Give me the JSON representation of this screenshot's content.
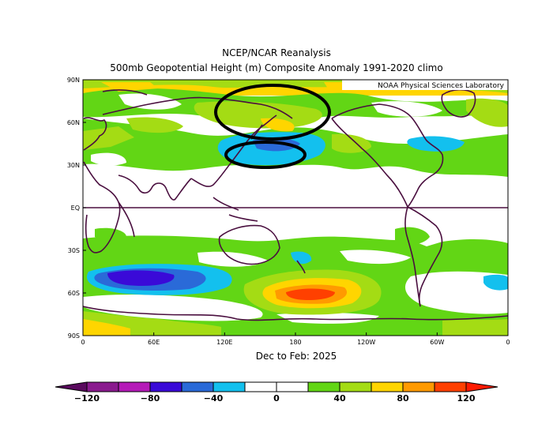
{
  "figure": {
    "title_line1": "NCEP/NCAR Reanalysis",
    "title_line2": "500mb Geopotential Height (m) Composite Anomaly 1991-2020 climo",
    "credit": "NOAA Physical Sciences Laboratory",
    "period": "Dec to Feb: 2025"
  },
  "axes": {
    "lat_labels": [
      "90N",
      "60N",
      "30N",
      "EQ",
      "30S",
      "60S",
      "90S"
    ],
    "lon_labels": [
      "0",
      "60E",
      "120E",
      "180",
      "120W",
      "60W",
      "0"
    ]
  },
  "colorbar": {
    "tick_labels": [
      "-120",
      "-80",
      "-40",
      "0",
      "40",
      "80",
      "120"
    ],
    "colors": [
      "#8a1a8e",
      "#b51ab8",
      "#3a0ad8",
      "#2a6ad8",
      "#13c0ee",
      "#ffffff",
      "#ffffff",
      "#62d615",
      "#a4dc14",
      "#ffd500",
      "#ff9a00",
      "#ff4000"
    ]
  },
  "anomaly_colors": {
    "pos_40": "#62d615",
    "pos_60": "#a4dc14",
    "pos_80": "#ffd500",
    "pos_100": "#ff9a00",
    "pos_120": "#ff4000",
    "neg_40": "#13c0ee",
    "neg_60": "#2a6ad8",
    "neg_80": "#3a0ad8",
    "neg_100": "#b51ab8",
    "coast": "#4a0f3f"
  }
}
